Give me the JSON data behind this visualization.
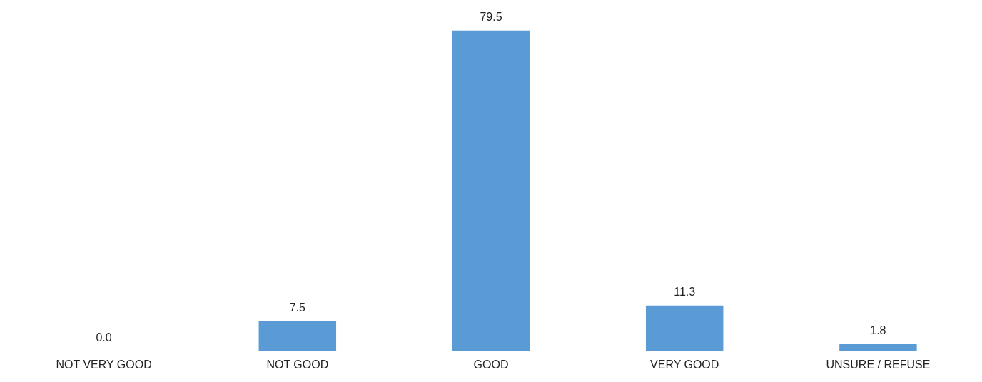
{
  "chart_data": {
    "type": "bar",
    "categories": [
      "NOT VERY GOOD",
      "NOT GOOD",
      "GOOD",
      "VERY GOOD",
      "UNSURE / REFUSE"
    ],
    "values": [
      0.0,
      7.5,
      79.5,
      11.3,
      1.8
    ],
    "value_labels": [
      "0.0",
      "7.5",
      "79.5",
      "11.3",
      "1.8"
    ],
    "color": "#5b9bd5",
    "grid": false,
    "legend": false,
    "tick_labels": "x"
  }
}
